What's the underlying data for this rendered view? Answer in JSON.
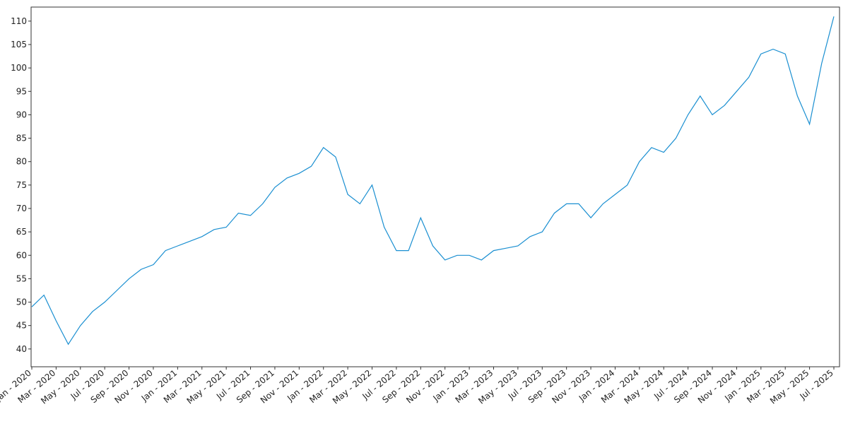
{
  "chart_data": {
    "type": "line",
    "x": [
      "2020-01",
      "2020-02",
      "2020-03",
      "2020-04",
      "2020-05",
      "2020-06",
      "2020-07",
      "2020-08",
      "2020-09",
      "2020-10",
      "2020-11",
      "2020-12",
      "2021-01",
      "2021-02",
      "2021-03",
      "2021-04",
      "2021-05",
      "2021-06",
      "2021-07",
      "2021-08",
      "2021-09",
      "2021-10",
      "2021-11",
      "2021-12",
      "2022-01",
      "2022-02",
      "2022-03",
      "2022-04",
      "2022-05",
      "2022-06",
      "2022-07",
      "2022-08",
      "2022-09",
      "2022-10",
      "2022-11",
      "2022-12",
      "2023-01",
      "2023-02",
      "2023-03",
      "2023-04",
      "2023-05",
      "2023-06",
      "2023-07",
      "2023-08",
      "2023-09",
      "2023-10",
      "2023-11",
      "2023-12",
      "2024-01",
      "2024-02",
      "2024-03",
      "2024-04",
      "2024-05",
      "2024-06",
      "2024-07",
      "2024-08",
      "2024-09",
      "2024-10",
      "2024-11",
      "2024-12",
      "2025-01",
      "2025-02",
      "2025-03",
      "2025-04",
      "2025-05",
      "2025-06",
      "2025-07"
    ],
    "series": [
      {
        "color": "#1a8fd1",
        "values": [
          49,
          51.5,
          46,
          41,
          45,
          48,
          50,
          52.5,
          55,
          57,
          58,
          61,
          62,
          63,
          64,
          65.5,
          66,
          69,
          68.5,
          71,
          74.5,
          76.5,
          77.5,
          79,
          83,
          81,
          73,
          71,
          75,
          66,
          61,
          61,
          68,
          62,
          59,
          60,
          60,
          59,
          61,
          61.5,
          62,
          64,
          65,
          69,
          71,
          71,
          68,
          71,
          73,
          75,
          80,
          83,
          82,
          85,
          90,
          94,
          90,
          92,
          95,
          98,
          103,
          104,
          103,
          94,
          88,
          101,
          111
        ]
      }
    ],
    "xlim": [
      "2020-01",
      "2025-07"
    ],
    "xticks": [
      {
        "value": "2020-01",
        "label": "Jan - 2020"
      },
      {
        "value": "2020-03",
        "label": "Mar - 2020"
      },
      {
        "value": "2020-05",
        "label": "May - 2020"
      },
      {
        "value": "2020-07",
        "label": "Jul - 2020"
      },
      {
        "value": "2020-09",
        "label": "Sep - 2020"
      },
      {
        "value": "2020-11",
        "label": "Nov - 2020"
      },
      {
        "value": "2021-01",
        "label": "Jan - 2021"
      },
      {
        "value": "2021-03",
        "label": "Mar - 2021"
      },
      {
        "value": "2021-05",
        "label": "May - 2021"
      },
      {
        "value": "2021-07",
        "label": "Jul - 2021"
      },
      {
        "value": "2021-09",
        "label": "Sep - 2021"
      },
      {
        "value": "2021-11",
        "label": "Nov - 2021"
      },
      {
        "value": "2022-01",
        "label": "Jan - 2022"
      },
      {
        "value": "2022-03",
        "label": "Mar - 2022"
      },
      {
        "value": "2022-05",
        "label": "May - 2022"
      },
      {
        "value": "2022-07",
        "label": "Jul - 2022"
      },
      {
        "value": "2022-09",
        "label": "Sep - 2022"
      },
      {
        "value": "2022-11",
        "label": "Nov - 2022"
      },
      {
        "value": "2023-01",
        "label": "Jan - 2023"
      },
      {
        "value": "2023-03",
        "label": "Mar - 2023"
      },
      {
        "value": "2023-05",
        "label": "May - 2023"
      },
      {
        "value": "2023-07",
        "label": "Jul - 2023"
      },
      {
        "value": "2023-09",
        "label": "Sep - 2023"
      },
      {
        "value": "2023-11",
        "label": "Nov - 2023"
      },
      {
        "value": "2024-01",
        "label": "Jan - 2024"
      },
      {
        "value": "2024-03",
        "label": "Mar - 2024"
      },
      {
        "value": "2024-05",
        "label": "May - 2024"
      },
      {
        "value": "2024-07",
        "label": "Jul - 2024"
      },
      {
        "value": "2024-09",
        "label": "Sep - 2024"
      },
      {
        "value": "2024-11",
        "label": "Nov - 2024"
      },
      {
        "value": "2025-01",
        "label": "Jan - 2025"
      },
      {
        "value": "2025-03",
        "label": "Mar - 2025"
      },
      {
        "value": "2025-05",
        "label": "May - 2025"
      },
      {
        "value": "2025-07",
        "label": "Jul - 2025"
      }
    ],
    "ylim": [
      36.2,
      113
    ],
    "yticks": [
      40,
      45,
      50,
      55,
      60,
      65,
      70,
      75,
      80,
      85,
      90,
      95,
      100,
      105,
      110
    ],
    "grid": false
  }
}
